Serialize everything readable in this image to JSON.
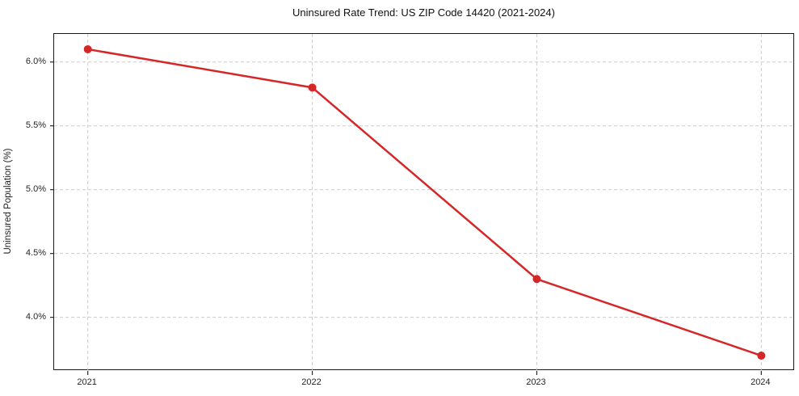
{
  "chart_data": {
    "type": "line",
    "title": "Uninsured Rate Trend: US ZIP Code 14420 (2021-2024)",
    "xlabel": "",
    "ylabel": "Uninsured Population (%)",
    "x": [
      2021,
      2022,
      2023,
      2024
    ],
    "series": [
      {
        "name": "Uninsured rate",
        "values": [
          6.1,
          5.8,
          4.3,
          3.7
        ],
        "color": "#d62728",
        "line_width": 2.5,
        "marker": "circle",
        "marker_radius": 5
      }
    ],
    "x_tick_labels": [
      "2021",
      "2022",
      "2023",
      "2024"
    ],
    "x_tick_values": [
      2021,
      2022,
      2023,
      2024
    ],
    "y_tick_labels": [
      "4.0%",
      "4.5%",
      "5.0%",
      "5.5%",
      "6.0%"
    ],
    "y_tick_values": [
      4.0,
      4.5,
      5.0,
      5.5,
      6.0
    ],
    "xlim": [
      2020.85,
      2024.15
    ],
    "ylim": [
      3.58,
      6.22
    ],
    "grid": true,
    "grid_color": "#cccccc",
    "grid_dash": "4 3",
    "legend": "none",
    "spine_color": "#1a1a1a",
    "tick_color": "#262626"
  }
}
